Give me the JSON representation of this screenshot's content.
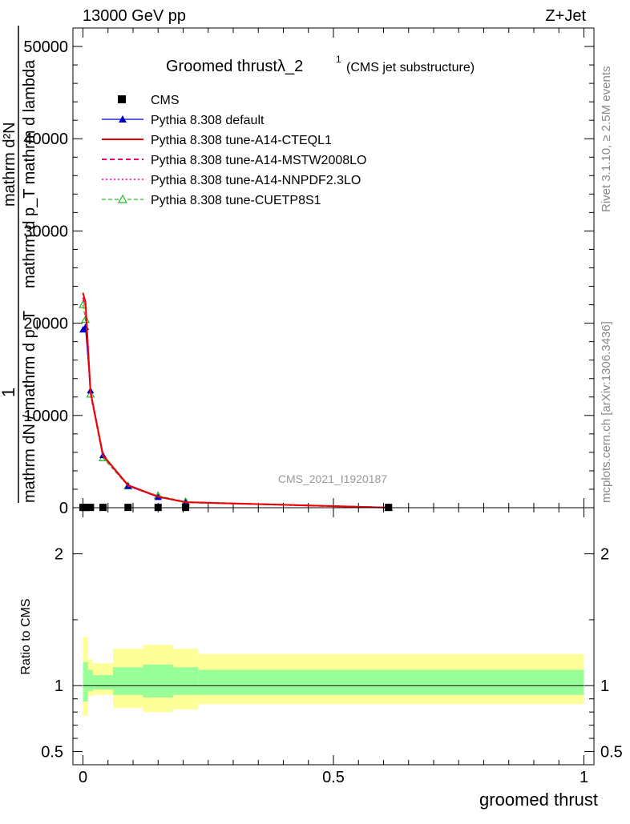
{
  "header": {
    "energy_label": "13000 GeV pp",
    "process_label": "Z+Jet"
  },
  "side_labels": {
    "rivet": "Rivet 3.1.10, ≥ 2.5M events",
    "mcplots": "mcplots.cern.ch [arXiv:1306.3436]"
  },
  "watermark": "CMS_2021_I1920187",
  "chart_data": [
    {
      "type": "line",
      "title_main": "Groomed thrustλ_2",
      "title_sup": "1",
      "title_sub": "(CMS jet substructure)",
      "ylabel_numerator": "mathrm d²N",
      "ylabel_denominator": "mathrm d p_T mathrm d lambda",
      "ylabel_prefix_numerator": "1",
      "ylabel_prefix_denominator": "mathrm dN / mathrm d p_T",
      "ylabel_full": "1 / mathrm dN / mathrm d p_T mathrm d²N / mathrm d p_T mathrm d lambda",
      "xlim": [
        -0.02,
        1.02
      ],
      "ylim": [
        0,
        52000
      ],
      "yticks": [
        0,
        10000,
        20000,
        30000,
        40000,
        50000
      ],
      "ytick_labels": [
        "0",
        "10000",
        "20000",
        "30000",
        "40000",
        "50000"
      ],
      "grid": false,
      "legend_position": "top-left",
      "x": [
        0.0,
        0.005,
        0.015,
        0.04,
        0.09,
        0.15,
        0.205,
        0.61
      ],
      "series": [
        {
          "name": "CMS",
          "style": "data-points",
          "color": "#000000",
          "values": [
            30,
            30,
            30,
            30,
            30,
            30,
            30,
            30
          ]
        },
        {
          "name": "Pythia 8.308 default",
          "style": "solid-triangle",
          "color": "#0000cc",
          "values": [
            19300,
            19600,
            12700,
            5700,
            2350,
            1150,
            580,
            10
          ]
        },
        {
          "name": "Pythia 8.308 tune-A14-CTEQL1",
          "style": "solid",
          "color": "#ee0000",
          "values": [
            23300,
            22300,
            12600,
            5700,
            2450,
            1200,
            600,
            10
          ]
        },
        {
          "name": "Pythia 8.308 tune-A14-MSTW2008LO",
          "style": "dashed",
          "color": "#ff0066",
          "values": [
            22800,
            22000,
            12500,
            5650,
            2420,
            1190,
            590,
            10
          ]
        },
        {
          "name": "Pythia 8.308 tune-A14-NNPDF2.3LO",
          "style": "dotted",
          "color": "#ff33cc",
          "values": [
            22500,
            21700,
            12400,
            5600,
            2400,
            1180,
            590,
            10
          ]
        },
        {
          "name": "Pythia 8.308 tune-CUETP8S1",
          "style": "dashed-open-triangle",
          "color": "#22bb22",
          "values": [
            22000,
            20400,
            12300,
            5400,
            2350,
            1300,
            650,
            10
          ]
        }
      ]
    },
    {
      "type": "area",
      "ylabel": "Ratio to CMS",
      "xlabel": "groomed thrust",
      "xlim": [
        -0.02,
        1.02
      ],
      "ylim": [
        0.4,
        2.35
      ],
      "xticks": [
        0,
        0.5,
        1
      ],
      "xtick_labels": [
        "0",
        "0.5",
        "1"
      ],
      "yticks": [
        0.5,
        1,
        2
      ],
      "ytick_labels": [
        "0.5",
        "1",
        "2"
      ],
      "reference_line": 1,
      "bins": [
        {
          "lo": 0.0,
          "hi": 0.01,
          "inner": [
            0.88,
            1.18
          ],
          "outer": [
            0.77,
            1.37
          ]
        },
        {
          "lo": 0.01,
          "hi": 0.02,
          "inner": [
            0.96,
            1.12
          ],
          "outer": [
            0.92,
            1.2
          ]
        },
        {
          "lo": 0.02,
          "hi": 0.06,
          "inner": [
            0.97,
            1.08
          ],
          "outer": [
            0.93,
            1.17
          ]
        },
        {
          "lo": 0.06,
          "hi": 0.12,
          "inner": [
            0.93,
            1.14
          ],
          "outer": [
            0.83,
            1.28
          ]
        },
        {
          "lo": 0.12,
          "hi": 0.18,
          "inner": [
            0.91,
            1.16
          ],
          "outer": [
            0.8,
            1.31
          ]
        },
        {
          "lo": 0.18,
          "hi": 0.23,
          "inner": [
            0.93,
            1.14
          ],
          "outer": [
            0.82,
            1.28
          ]
        },
        {
          "lo": 0.23,
          "hi": 1.0,
          "inner": [
            0.93,
            1.12
          ],
          "outer": [
            0.86,
            1.24
          ]
        }
      ],
      "colors": {
        "inner": "#99ff99",
        "outer": "#ffff99"
      }
    }
  ]
}
